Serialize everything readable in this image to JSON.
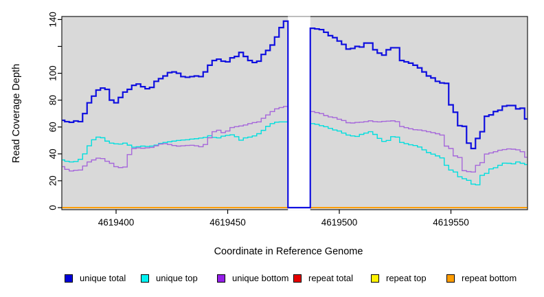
{
  "chart_data": {
    "type": "line",
    "subtype": "step-coverage",
    "title": "",
    "xlabel": "Coordinate in Reference Genome",
    "ylabel": "Read Coverage Depth",
    "xlim": [
      4619376,
      4619584
    ],
    "ylim": [
      0,
      145
    ],
    "grid": false,
    "panel_bg": "#d9d9d9",
    "frame_color": "#1a1a1a",
    "x_ticks": [
      4619400,
      4619450,
      4619500,
      4619550
    ],
    "y_ticks": [
      0,
      20,
      40,
      60,
      80,
      100,
      120,
      140
    ],
    "y_tick_labels": [
      "0",
      "20",
      "40",
      "60",
      "80",
      "100",
      "",
      "140"
    ],
    "legend_position": "bottom",
    "missing_region": {
      "x_start": 4619477,
      "x_end": 4619487,
      "fill": "#ffffff",
      "top_line_color": "#9a9a9a"
    },
    "x_step_start": 4619375,
    "x_step_size": 2,
    "series": [
      {
        "key": "unique-total",
        "label": "unique total",
        "line_color": "#0f0fdf",
        "legend_color": "#0000d9",
        "width": 2.2,
        "z": 6,
        "values": [
          65,
          64,
          63.5,
          64.5,
          64,
          70,
          78,
          83,
          87.5,
          89,
          88,
          80,
          78,
          82,
          86,
          88,
          91,
          92,
          90,
          88.5,
          89.5,
          94,
          96,
          98,
          100.5,
          101,
          100,
          97.5,
          97,
          97.5,
          98,
          97.5,
          101,
          106,
          109.5,
          110.5,
          109,
          108.5,
          111.5,
          112.5,
          115.5,
          112.5,
          109.5,
          108,
          109,
          114,
          117,
          121,
          127,
          134,
          138.8,
          0,
          0,
          0,
          0,
          0,
          133.5,
          133,
          132.5,
          130.5,
          128,
          126.5,
          124,
          121.5,
          118,
          118.5,
          120,
          119.5,
          122.5,
          122.5,
          117.5,
          115,
          113.5,
          117.5,
          119,
          119,
          109.5,
          108.5,
          107.5,
          106,
          104,
          101,
          98,
          96.5,
          94,
          92.8,
          92.5,
          76.5,
          71,
          61,
          60.5,
          48,
          44,
          51.5,
          56.5,
          68,
          69,
          71.5,
          72.5,
          75.5,
          76,
          76,
          73.5,
          74,
          66
        ]
      },
      {
        "key": "unique-top",
        "label": "unique top",
        "line_color": "#00dede",
        "legend_color": "#00f2f2",
        "width": 1.4,
        "z": 4,
        "values": [
          35.5,
          34.5,
          34,
          34.3,
          36,
          40,
          46,
          50.5,
          52.5,
          52,
          49.5,
          48,
          47.5,
          47.3,
          48,
          46.5,
          45,
          45.3,
          45.8,
          45.5,
          45.8,
          46.5,
          47.8,
          48.5,
          49,
          49.5,
          50,
          50.3,
          50.5,
          51,
          51.3,
          51.8,
          52.3,
          53.5,
          52.3,
          51.9,
          53.2,
          53.8,
          54.2,
          52.8,
          50.2,
          51.9,
          52.5,
          53.4,
          55,
          57.5,
          60.5,
          62.5,
          63.6,
          63.8,
          63.8,
          0,
          0,
          0,
          0,
          0,
          62.5,
          62,
          61,
          60.2,
          59,
          57.8,
          57,
          55.5,
          54,
          53.4,
          53,
          54.5,
          55.5,
          56.5,
          54.5,
          51.5,
          49.3,
          50,
          52.8,
          52.5,
          48.5,
          47.6,
          46.8,
          46.2,
          45.1,
          43,
          41,
          39.8,
          38.5,
          37,
          31.5,
          28,
          26.5,
          23,
          21.5,
          20.3,
          17.5,
          17,
          24,
          25.5,
          28.8,
          29.7,
          31.5,
          33.1,
          33,
          32.6,
          34,
          33,
          32
        ]
      },
      {
        "key": "unique-bottom",
        "label": "unique bottom",
        "line_color": "#a566da",
        "legend_color": "#951fe8",
        "width": 1.4,
        "z": 5,
        "values": [
          30.5,
          28.5,
          27.3,
          27.8,
          28,
          31,
          34,
          35.5,
          36.8,
          36.5,
          34.5,
          33,
          30.5,
          29.8,
          30.2,
          39.5,
          44,
          44.5,
          44.2,
          44.5,
          44.8,
          46,
          47.3,
          47.6,
          47,
          46.2,
          45.8,
          46,
          46.3,
          46.4,
          46,
          45.3,
          47,
          52,
          56.5,
          57.6,
          55.8,
          57,
          59.6,
          60.3,
          60.8,
          61.5,
          62.5,
          63.3,
          63.8,
          66.5,
          69,
          71.5,
          73.5,
          74.5,
          75.3,
          0,
          0,
          0,
          0,
          0,
          71.5,
          70.8,
          70,
          68.5,
          67.5,
          67,
          65.8,
          64.8,
          63.2,
          63,
          63.4,
          63.6,
          64,
          64.6,
          64,
          63.8,
          64.2,
          64.4,
          64.6,
          64,
          60.4,
          59.5,
          58.7,
          58,
          57.8,
          57.2,
          56.5,
          55.8,
          55,
          54,
          45.8,
          44,
          38.5,
          37.3,
          27.5,
          26.8,
          26.5,
          31.5,
          33.5,
          39.9,
          40.7,
          41.6,
          42.7,
          43.2,
          43.7,
          43.5,
          43,
          41.6,
          37.5
        ]
      },
      {
        "key": "repeat-total",
        "label": "repeat total",
        "line_color": "#e60000",
        "legend_color": "#e60000",
        "width": 1.6,
        "z": 1,
        "constant": 0
      },
      {
        "key": "repeat-top",
        "label": "repeat top",
        "line_color": "#fff200",
        "legend_color": "#fff200",
        "width": 1.6,
        "z": 2,
        "constant": 0
      },
      {
        "key": "repeat-bottom",
        "label": "repeat bottom",
        "line_color": "#ff9d00",
        "legend_color": "#ff9d00",
        "width": 2,
        "z": 3,
        "constant": 0
      }
    ]
  }
}
